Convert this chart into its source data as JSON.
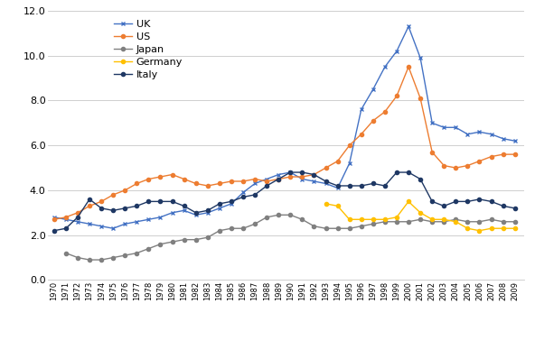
{
  "years": [
    1970,
    1971,
    1972,
    1973,
    1974,
    1975,
    1976,
    1977,
    1978,
    1979,
    1980,
    1981,
    1982,
    1983,
    1984,
    1985,
    1986,
    1987,
    1988,
    1989,
    1990,
    1991,
    1992,
    1993,
    1994,
    1995,
    1996,
    1997,
    1998,
    1999,
    2000,
    2001,
    2002,
    2003,
    2004,
    2005,
    2006,
    2007,
    2008,
    2009
  ],
  "UK": [
    2.8,
    2.7,
    2.6,
    2.5,
    2.4,
    2.3,
    2.5,
    2.6,
    2.7,
    2.8,
    3.0,
    3.1,
    2.9,
    3.0,
    3.2,
    3.4,
    3.9,
    4.3,
    4.5,
    4.7,
    4.8,
    4.5,
    4.4,
    4.3,
    4.1,
    5.2,
    7.6,
    8.5,
    9.5,
    10.2,
    11.3,
    9.9,
    7.0,
    6.8,
    6.8,
    6.5,
    6.6,
    6.5,
    6.3,
    6.2
  ],
  "US": [
    2.7,
    2.8,
    3.0,
    3.3,
    3.5,
    3.8,
    4.0,
    4.3,
    4.5,
    4.6,
    4.7,
    4.5,
    4.3,
    4.2,
    4.3,
    4.4,
    4.4,
    4.5,
    4.4,
    4.5,
    4.6,
    4.6,
    4.7,
    5.0,
    5.3,
    6.0,
    6.5,
    7.1,
    7.5,
    8.2,
    9.5,
    8.1,
    5.7,
    5.1,
    5.0,
    5.1,
    5.3,
    5.5,
    5.6,
    5.6
  ],
  "Japan": [
    null,
    1.2,
    1.0,
    0.9,
    0.9,
    1.0,
    1.1,
    1.2,
    1.4,
    1.6,
    1.7,
    1.8,
    1.8,
    1.9,
    2.2,
    2.3,
    2.3,
    2.5,
    2.8,
    2.9,
    2.9,
    2.7,
    2.4,
    2.3,
    2.3,
    2.3,
    2.4,
    2.5,
    2.6,
    2.6,
    2.6,
    2.7,
    2.6,
    2.6,
    2.7,
    2.6,
    2.6,
    2.7,
    2.6,
    2.6
  ],
  "Germany": [
    null,
    null,
    null,
    null,
    null,
    null,
    null,
    null,
    null,
    null,
    null,
    null,
    null,
    null,
    null,
    null,
    null,
    null,
    null,
    null,
    null,
    null,
    null,
    3.4,
    3.3,
    2.7,
    2.7,
    2.7,
    2.7,
    2.8,
    3.5,
    3.0,
    2.7,
    2.7,
    2.6,
    2.3,
    2.2,
    2.3,
    2.3,
    2.3
  ],
  "Italy": [
    2.2,
    2.3,
    2.8,
    3.6,
    3.2,
    3.1,
    3.2,
    3.3,
    3.5,
    3.5,
    3.5,
    3.3,
    3.0,
    3.1,
    3.4,
    3.5,
    3.7,
    3.8,
    4.2,
    4.5,
    4.8,
    4.8,
    4.7,
    4.4,
    4.2,
    4.2,
    4.2,
    4.3,
    4.2,
    4.8,
    4.8,
    4.5,
    3.5,
    3.3,
    3.5,
    3.5,
    3.6,
    3.5,
    3.3,
    3.2
  ],
  "line_colors": {
    "UK": "#4472C4",
    "US": "#ED7D31",
    "Japan": "#808080",
    "Germany": "#FFC000",
    "Italy": "#1F3864"
  },
  "markers": {
    "UK": "x",
    "US": "o",
    "Japan": "o",
    "Germany": "o",
    "Italy": "o"
  },
  "ylim": [
    0.0,
    12.0
  ],
  "yticks": [
    0.0,
    2.0,
    4.0,
    6.0,
    8.0,
    10.0,
    12.0
  ],
  "background_color": "#ffffff"
}
